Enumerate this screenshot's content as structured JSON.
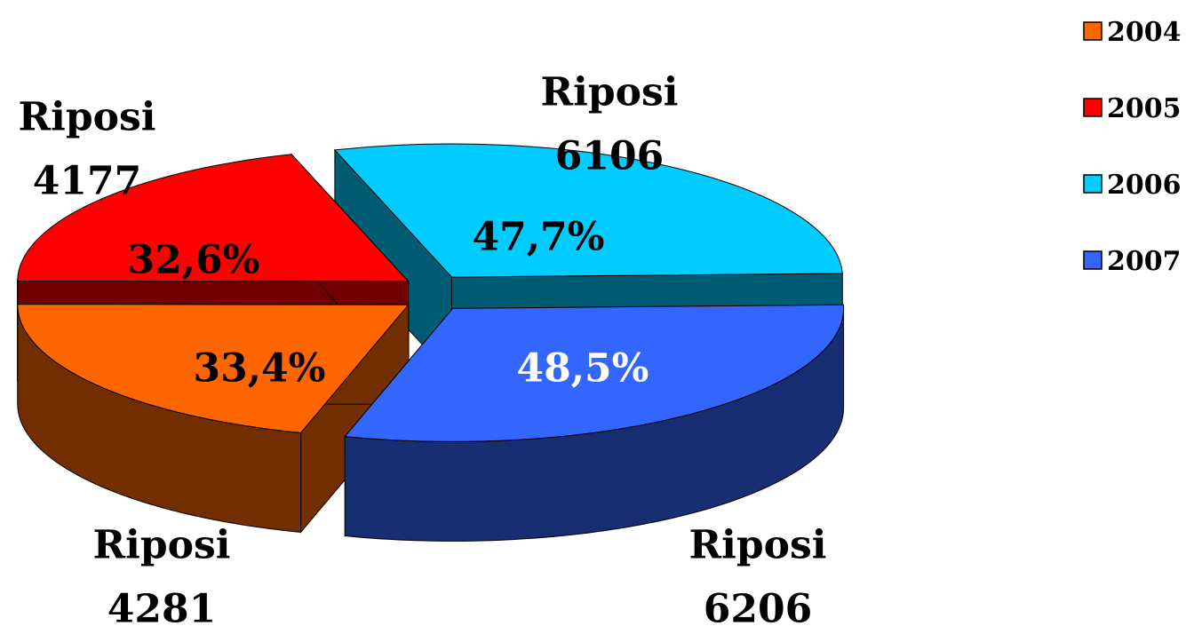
{
  "chart_data": {
    "type": "pie3d",
    "categories": [
      "2004",
      "2005",
      "2006",
      "2007"
    ],
    "values": [
      4281,
      4177,
      6106,
      6206
    ],
    "label_names": [
      "Riposi",
      "Riposi",
      "Riposi",
      "Riposi"
    ],
    "percent_labels": [
      "33,4%",
      "32,6%",
      "47,7%",
      "48,5%"
    ],
    "colors": [
      "#ff6600",
      "#ff0000",
      "#00ccff",
      "#3366ff"
    ],
    "legend": "top-right"
  }
}
